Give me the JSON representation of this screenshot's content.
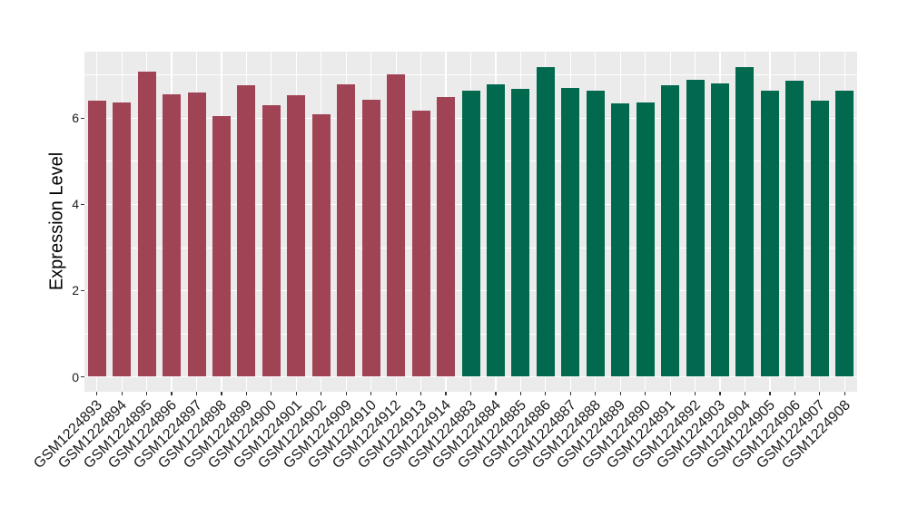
{
  "figure": {
    "background": "#FFFFFF",
    "panel_background": "#EBEBEB",
    "gridline_color": "#FFFFFF",
    "axis_text_color": "#1A1A1A",
    "tick_mark_color": "#333333"
  },
  "chart_data": {
    "type": "bar",
    "title": "",
    "xlabel": "",
    "ylabel": "Expression Level",
    "ylim": [
      0,
      7.55
    ],
    "yticks": [
      0,
      2,
      4,
      6
    ],
    "yticks_minor": [
      1,
      3,
      5,
      7
    ],
    "grid": true,
    "legend": "none",
    "group_colors": [
      "#A04455",
      "#01694E"
    ],
    "categories": [
      "GSM1224893",
      "GSM1224894",
      "GSM1224895",
      "GSM1224896",
      "GSM1224897",
      "GSM1224898",
      "GSM1224899",
      "GSM1224900",
      "GSM1224901",
      "GSM1224902",
      "GSM1224909",
      "GSM1224910",
      "GSM1224912",
      "GSM1224913",
      "GSM1224914",
      "GSM1224883",
      "GSM1224884",
      "GSM1224885",
      "GSM1224886",
      "GSM1224887",
      "GSM1224888",
      "GSM1224889",
      "GSM1224890",
      "GSM1224891",
      "GSM1224892",
      "GSM1224903",
      "GSM1224904",
      "GSM1224905",
      "GSM1224906",
      "GSM1224907",
      "GSM1224908"
    ],
    "values": [
      6.41,
      6.37,
      7.08,
      6.55,
      6.6,
      6.04,
      6.76,
      6.3,
      6.53,
      6.09,
      6.79,
      6.42,
      7.02,
      6.17,
      6.49,
      6.63,
      6.78,
      6.69,
      7.19,
      6.71,
      6.64,
      6.34,
      6.37,
      6.76,
      6.89,
      6.8,
      7.19,
      6.63,
      6.86,
      6.41,
      6.64
    ],
    "groups": [
      0,
      0,
      0,
      0,
      0,
      0,
      0,
      0,
      0,
      0,
      0,
      0,
      0,
      0,
      0,
      1,
      1,
      1,
      1,
      1,
      1,
      1,
      1,
      1,
      1,
      1,
      1,
      1,
      1,
      1,
      1
    ]
  }
}
